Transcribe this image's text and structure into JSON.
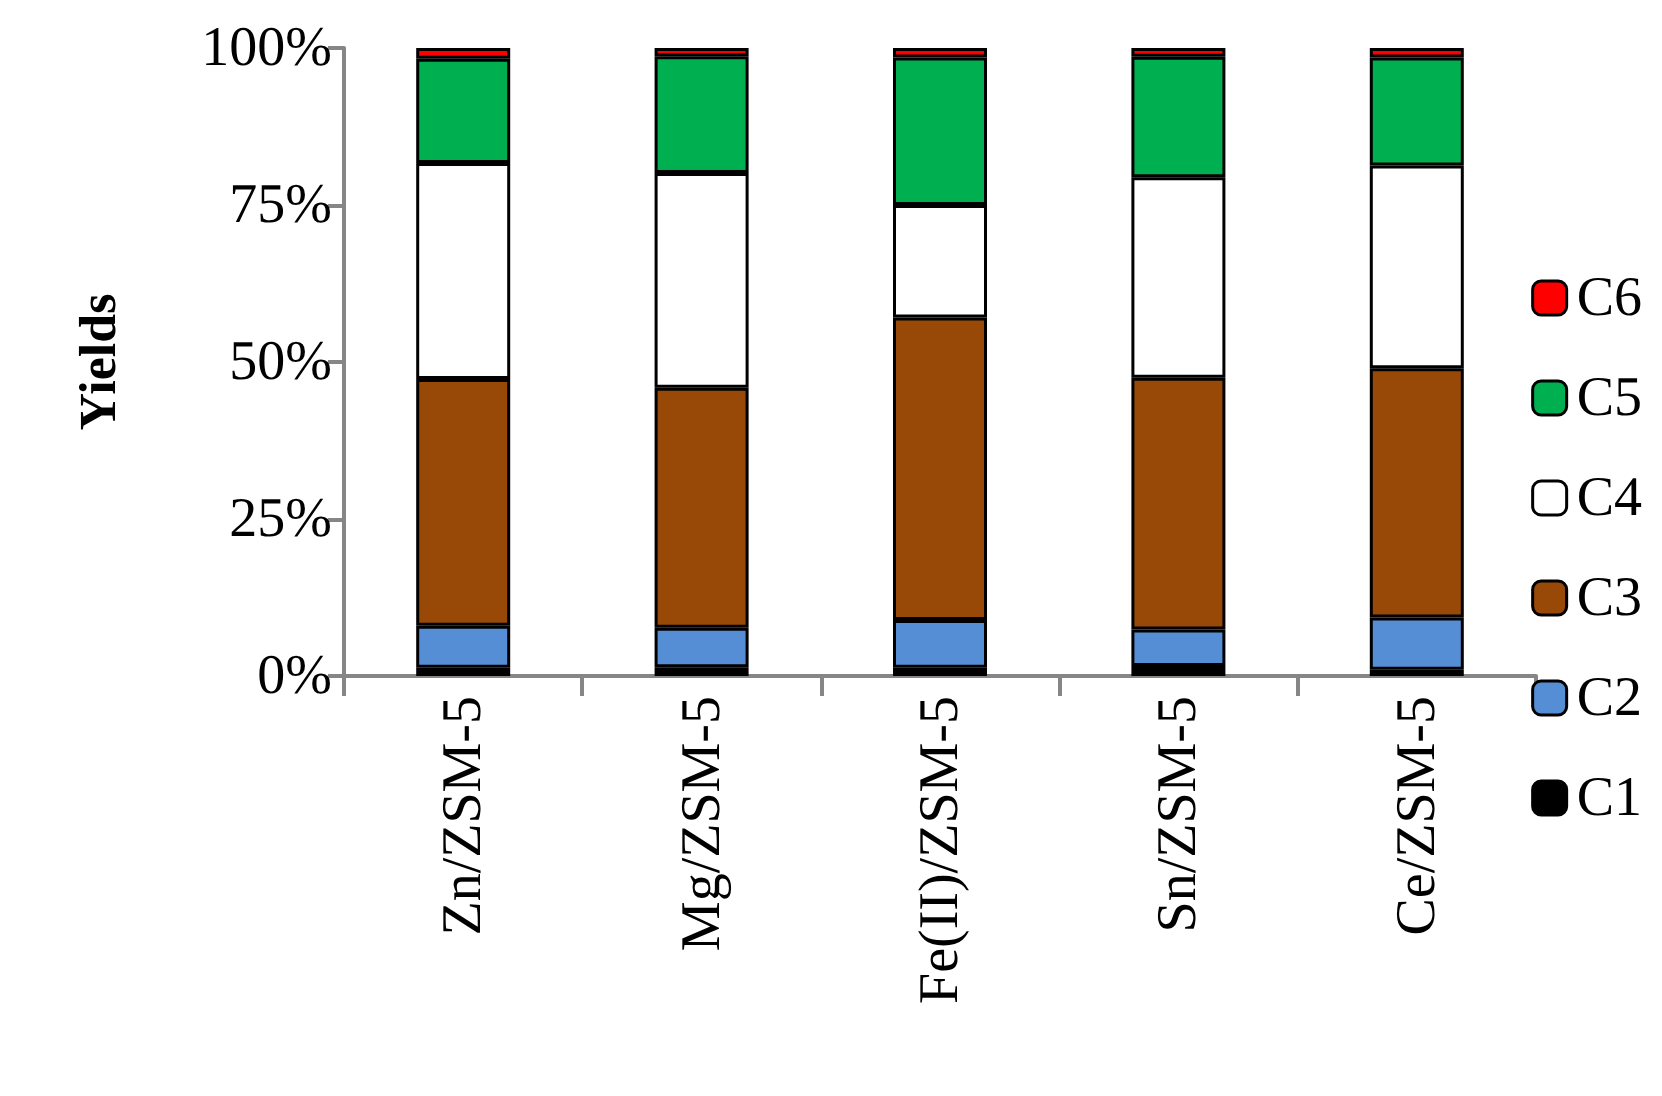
{
  "chart_data": {
    "type": "bar",
    "stacked": true,
    "ylabel": "Yields",
    "categories": [
      "Zn/ZSM-5",
      "Mg/ZSM-5",
      "Fe(II)/ZSM-5",
      "Sn/ZSM-5",
      "Ce/ZSM-5"
    ],
    "series": [
      {
        "name": "C1",
        "color": "#000000",
        "values": [
          1.3,
          1.4,
          1.3,
          1.6,
          1.0
        ]
      },
      {
        "name": "C2",
        "color": "#558ed5",
        "values": [
          6.7,
          6.3,
          7.6,
          5.8,
          8.3
        ]
      },
      {
        "name": "C3",
        "color": "#984807",
        "values": [
          39.3,
          38.2,
          48.2,
          40.1,
          39.7
        ]
      },
      {
        "name": "C4",
        "color": "#ffffff",
        "values": [
          34.4,
          34.2,
          17.9,
          31.9,
          32.3
        ]
      },
      {
        "name": "C5",
        "color": "#00b050",
        "values": [
          16.6,
          18.6,
          23.5,
          19.2,
          17.2
        ]
      },
      {
        "name": "C6",
        "color": "#ff0000",
        "values": [
          1.7,
          1.3,
          1.5,
          1.4,
          1.5
        ]
      }
    ],
    "ylim": [
      0,
      100
    ],
    "yticks": [
      {
        "value": 0,
        "label": "0%"
      },
      {
        "value": 25,
        "label": "25%"
      },
      {
        "value": 50,
        "label": "50%"
      },
      {
        "value": 75,
        "label": "75%"
      },
      {
        "value": 100,
        "label": "100%"
      }
    ],
    "grid": false,
    "legend": "right"
  }
}
